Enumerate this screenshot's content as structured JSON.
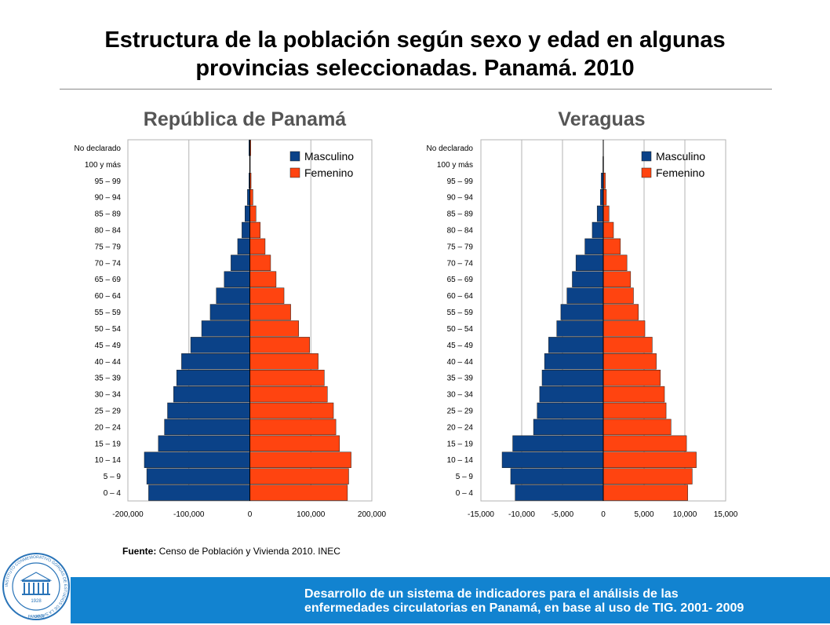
{
  "slide": {
    "title_line1": "Estructura de la población según sexo y edad en algunas",
    "title_line2": "provincias seleccionadas. Panamá. 2010",
    "source_label": "Fuente:",
    "source_text": " Censo de Población y Vivienda  2010. INEC",
    "footer_line1": "Desarrollo de un sistema de indicadores para el análisis de las",
    "footer_line2": "enfermedades circulatorias en Panamá, en base al uso de TIG. 2001- 2009",
    "logo": {
      "ring_text": "INSTITUTO CONMEMORATIVO GORGAS DE ESTUDIOS DE LA SALUD",
      "year": "1928",
      "place": "PANAMA"
    }
  },
  "colors": {
    "male": "#0b4288",
    "female": "#ff4410",
    "footer": "#1283d0"
  },
  "chart_data": [
    {
      "type": "bar",
      "orientation": "horizontal",
      "title": "República de Panamá",
      "legend_position": "top-right",
      "grid": true,
      "categories": [
        "No declarado",
        "100 y más",
        "95 – 99",
        "90 – 94",
        "85 – 89",
        "80 – 84",
        "75 – 79",
        "70 – 74",
        "65 – 69",
        "60 – 64",
        "55 – 59",
        "50 – 54",
        "45 – 49",
        "40 – 44",
        "35 – 39",
        "30 – 34",
        "25 – 29",
        "20 – 24",
        "15 – 19",
        "10 – 14",
        "5 – 9",
        "0 – 4"
      ],
      "xlim": [
        -200000,
        200000
      ],
      "xticks": [
        -200000,
        -100000,
        0,
        100000,
        200000
      ],
      "xtick_labels": [
        "-200,000",
        "-100,000",
        "0",
        "100,000",
        "200,000"
      ],
      "series": [
        {
          "name": "Masculino",
          "values": [
            -1500,
            -500,
            -1500,
            -4000,
            -8000,
            -13000,
            -20000,
            -31000,
            -42000,
            -55000,
            -65000,
            -79000,
            -97000,
            -112000,
            -120000,
            -125000,
            -135000,
            -140000,
            -150000,
            -173000,
            -169000,
            -166000
          ]
        },
        {
          "name": "Femenino",
          "values": [
            1500,
            700,
            2000,
            5000,
            10000,
            17000,
            25000,
            34000,
            43000,
            56000,
            67000,
            80000,
            98000,
            112000,
            122000,
            127000,
            137000,
            141000,
            147000,
            166000,
            162000,
            160000
          ]
        }
      ]
    },
    {
      "type": "bar",
      "orientation": "horizontal",
      "title": "Veraguas",
      "legend_position": "top-right",
      "grid": true,
      "categories": [
        "No declarado",
        "100 y más",
        "95 – 99",
        "90 – 94",
        "85 – 89",
        "80 – 84",
        "75 – 79",
        "70 – 74",
        "65 – 69",
        "60 – 64",
        "55 – 59",
        "50 – 54",
        "45 – 49",
        "40 – 44",
        "35 – 39",
        "30 – 34",
        "25 – 29",
        "20 – 24",
        "15 – 19",
        "10 – 14",
        "5 – 9",
        "0 – 4"
      ],
      "xlim": [
        -15000,
        15000
      ],
      "xticks": [
        -15000,
        -10000,
        -5000,
        0,
        5000,
        10000,
        15000
      ],
      "xtick_labels": [
        "-15,000",
        "-10,000",
        "-5,000",
        "0",
        "5,000",
        "10,000",
        "15,000"
      ],
      "series": [
        {
          "name": "Masculino",
          "values": [
            0,
            -50,
            -250,
            -350,
            -750,
            -1350,
            -2250,
            -3350,
            -3800,
            -4450,
            -5200,
            -5700,
            -6700,
            -7200,
            -7500,
            -7800,
            -8100,
            -8550,
            -11100,
            -12400,
            -11350,
            -10800
          ]
        },
        {
          "name": "Femenino",
          "values": [
            0,
            40,
            250,
            380,
            700,
            1250,
            2100,
            2900,
            3350,
            3700,
            4300,
            5100,
            6000,
            6500,
            7000,
            7500,
            7700,
            8300,
            10200,
            11400,
            10900,
            10350
          ]
        }
      ]
    }
  ]
}
